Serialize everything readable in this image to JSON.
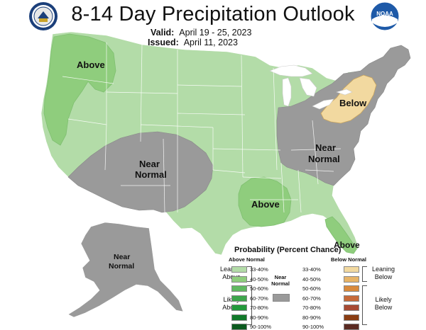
{
  "header": {
    "title": "8-14 Day Precipitation Outlook",
    "valid_label": "Valid:",
    "valid_dates": "April 19 - 25, 2023",
    "issued_label": "Issued:",
    "issued_date": "April 11, 2023"
  },
  "logos": {
    "left": "department-of-commerce-seal",
    "right": "noaa-logo",
    "noaa_text": "NOAA"
  },
  "map_labels": {
    "above_west": "Above",
    "near_normal_southwest_line1": "Near",
    "near_normal_southwest_line2": "Normal",
    "below_northeast": "Below",
    "near_normal_east_line1": "Near",
    "near_normal_east_line2": "Normal",
    "above_gulf": "Above",
    "above_florida": "Above",
    "near_normal_alaska_line1": "Near",
    "near_normal_alaska_line2": "Normal"
  },
  "legend": {
    "title": "Probability (Percent Chance)",
    "above_header": "Above Normal",
    "below_header": "Below Normal",
    "above_bins": [
      {
        "label": "33-40%",
        "color": "#b3dca8"
      },
      {
        "label": "40-50%",
        "color": "#8fcd7d"
      },
      {
        "label": "50-60%",
        "color": "#61b961"
      },
      {
        "label": "60-70%",
        "color": "#3ea64c"
      },
      {
        "label": "70-80%",
        "color": "#239a3b"
      },
      {
        "label": "80-90%",
        "color": "#117a2a"
      },
      {
        "label": "90-100%",
        "color": "#0b5a1e"
      }
    ],
    "below_bins": [
      {
        "label": "33-40%",
        "color": "#f2d9a0"
      },
      {
        "label": "40-50%",
        "color": "#e7b467"
      },
      {
        "label": "50-60%",
        "color": "#d98a3c"
      },
      {
        "label": "60-70%",
        "color": "#c76a3a"
      },
      {
        "label": "70-80%",
        "color": "#a84a33"
      },
      {
        "label": "80-90%",
        "color": "#8a3d13"
      },
      {
        "label": "90-100%",
        "color": "#5a2a22"
      }
    ],
    "near_normal_line1": "Near",
    "near_normal_line2": "Normal",
    "near_normal_color": "#9a9a9a",
    "leaning_above_1": "Leaning",
    "leaning_above_2": "Above",
    "likely_above_1": "Likely",
    "likely_above_2": "Above",
    "leaning_below_1": "Leaning",
    "leaning_below_2": "Below",
    "likely_below_1": "Likely",
    "likely_below_2": "Below"
  },
  "colors": {
    "above_33_40": "#b3dca8",
    "above_40_50": "#8fcd7d",
    "below_33_40": "#f2d9a0",
    "near_normal": "#9a9a9a",
    "border": "#ffffff"
  }
}
